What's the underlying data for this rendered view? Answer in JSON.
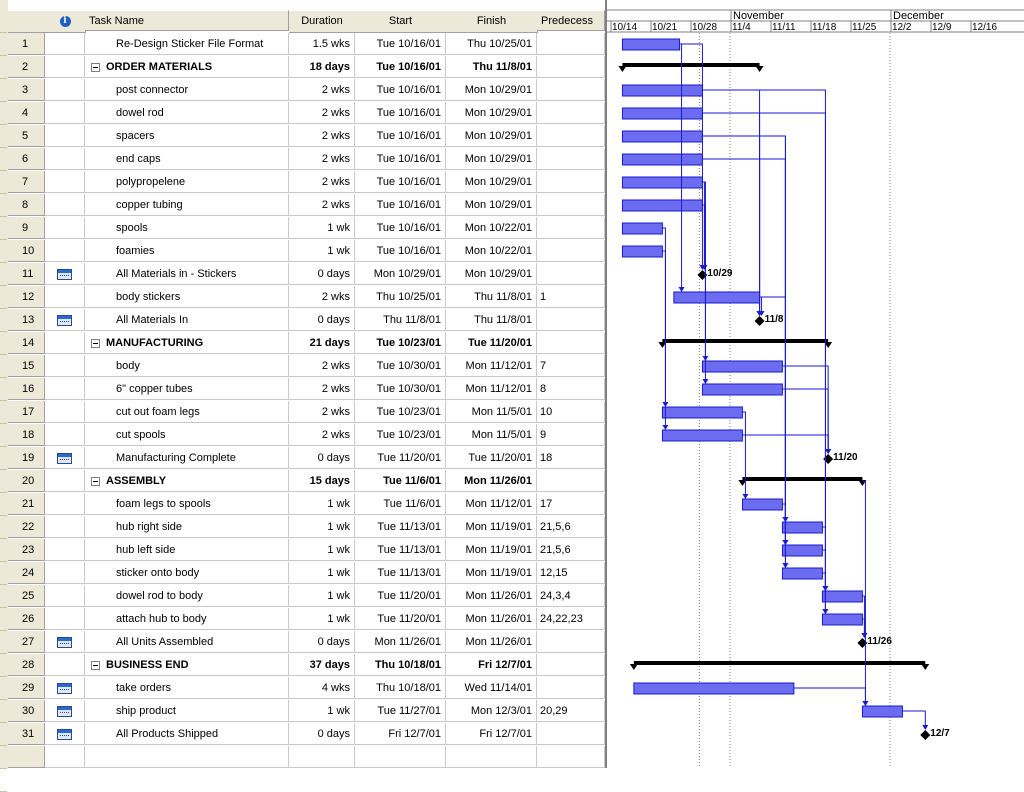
{
  "table": {
    "headers": {
      "indicator": "info-icon",
      "name": "Task Name",
      "duration": "Duration",
      "start": "Start",
      "finish": "Finish",
      "predecessors": "Predecess"
    },
    "rows": [
      {
        "id": "1",
        "ind": "",
        "name": "Re-Design Sticker File Format",
        "dur": "1.5 wks",
        "start": "Tue 10/16/01",
        "finish": "Thu 10/25/01",
        "pred": "",
        "summary": false
      },
      {
        "id": "2",
        "ind": "",
        "name": "ORDER MATERIALS",
        "dur": "18 days",
        "start": "Tue 10/16/01",
        "finish": "Thu 11/8/01",
        "pred": "",
        "summary": true
      },
      {
        "id": "3",
        "ind": "",
        "name": "post connector",
        "dur": "2 wks",
        "start": "Tue 10/16/01",
        "finish": "Mon 10/29/01",
        "pred": "",
        "summary": false
      },
      {
        "id": "4",
        "ind": "",
        "name": "dowel rod",
        "dur": "2 wks",
        "start": "Tue 10/16/01",
        "finish": "Mon 10/29/01",
        "pred": "",
        "summary": false
      },
      {
        "id": "5",
        "ind": "",
        "name": "spacers",
        "dur": "2 wks",
        "start": "Tue 10/16/01",
        "finish": "Mon 10/29/01",
        "pred": "",
        "summary": false
      },
      {
        "id": "6",
        "ind": "",
        "name": "end caps",
        "dur": "2 wks",
        "start": "Tue 10/16/01",
        "finish": "Mon 10/29/01",
        "pred": "",
        "summary": false
      },
      {
        "id": "7",
        "ind": "",
        "name": "polypropelene",
        "dur": "2 wks",
        "start": "Tue 10/16/01",
        "finish": "Mon 10/29/01",
        "pred": "",
        "summary": false
      },
      {
        "id": "8",
        "ind": "",
        "name": "copper tubing",
        "dur": "2 wks",
        "start": "Tue 10/16/01",
        "finish": "Mon 10/29/01",
        "pred": "",
        "summary": false
      },
      {
        "id": "9",
        "ind": "",
        "name": "spools",
        "dur": "1 wk",
        "start": "Tue 10/16/01",
        "finish": "Mon 10/22/01",
        "pred": "",
        "summary": false
      },
      {
        "id": "10",
        "ind": "",
        "name": "foamies",
        "dur": "1 wk",
        "start": "Tue 10/16/01",
        "finish": "Mon 10/22/01",
        "pred": "",
        "summary": false
      },
      {
        "id": "11",
        "ind": "calendar-icon",
        "name": "All Materials in - Stickers",
        "dur": "0 days",
        "start": "Mon 10/29/01",
        "finish": "Mon 10/29/01",
        "pred": "",
        "summary": false
      },
      {
        "id": "12",
        "ind": "",
        "name": "body stickers",
        "dur": "2 wks",
        "start": "Thu 10/25/01",
        "finish": "Thu 11/8/01",
        "pred": "1",
        "summary": false
      },
      {
        "id": "13",
        "ind": "calendar-icon",
        "name": "All Materials In",
        "dur": "0 days",
        "start": "Thu 11/8/01",
        "finish": "Thu 11/8/01",
        "pred": "",
        "summary": false
      },
      {
        "id": "14",
        "ind": "",
        "name": "MANUFACTURING",
        "dur": "21 days",
        "start": "Tue 10/23/01",
        "finish": "Tue 11/20/01",
        "pred": "",
        "summary": true
      },
      {
        "id": "15",
        "ind": "",
        "name": "body",
        "dur": "2 wks",
        "start": "Tue 10/30/01",
        "finish": "Mon 11/12/01",
        "pred": "7",
        "summary": false
      },
      {
        "id": "16",
        "ind": "",
        "name": "6\" copper tubes",
        "dur": "2 wks",
        "start": "Tue 10/30/01",
        "finish": "Mon 11/12/01",
        "pred": "8",
        "summary": false
      },
      {
        "id": "17",
        "ind": "",
        "name": "cut out foam legs",
        "dur": "2 wks",
        "start": "Tue 10/23/01",
        "finish": "Mon 11/5/01",
        "pred": "10",
        "summary": false
      },
      {
        "id": "18",
        "ind": "",
        "name": "cut spools",
        "dur": "2 wks",
        "start": "Tue 10/23/01",
        "finish": "Mon 11/5/01",
        "pred": "9",
        "summary": false
      },
      {
        "id": "19",
        "ind": "calendar-icon",
        "name": "Manufacturing Complete",
        "dur": "0 days",
        "start": "Tue 11/20/01",
        "finish": "Tue 11/20/01",
        "pred": "18",
        "summary": false
      },
      {
        "id": "20",
        "ind": "",
        "name": "ASSEMBLY",
        "dur": "15 days",
        "start": "Tue 11/6/01",
        "finish": "Mon 11/26/01",
        "pred": "",
        "summary": true
      },
      {
        "id": "21",
        "ind": "",
        "name": "foam legs to spools",
        "dur": "1 wk",
        "start": "Tue 11/6/01",
        "finish": "Mon 11/12/01",
        "pred": "17",
        "summary": false
      },
      {
        "id": "22",
        "ind": "",
        "name": "hub right side",
        "dur": "1 wk",
        "start": "Tue 11/13/01",
        "finish": "Mon 11/19/01",
        "pred": "21,5,6",
        "summary": false
      },
      {
        "id": "23",
        "ind": "",
        "name": "hub left side",
        "dur": "1 wk",
        "start": "Tue 11/13/01",
        "finish": "Mon 11/19/01",
        "pred": "21,5,6",
        "summary": false
      },
      {
        "id": "24",
        "ind": "",
        "name": "sticker onto body",
        "dur": "1 wk",
        "start": "Tue 11/13/01",
        "finish": "Mon 11/19/01",
        "pred": "12,15",
        "summary": false
      },
      {
        "id": "25",
        "ind": "",
        "name": "dowel rod to body",
        "dur": "1 wk",
        "start": "Tue 11/20/01",
        "finish": "Mon 11/26/01",
        "pred": "24,3,4",
        "summary": false
      },
      {
        "id": "26",
        "ind": "",
        "name": "attach hub to body",
        "dur": "1 wk",
        "start": "Tue 11/20/01",
        "finish": "Mon 11/26/01",
        "pred": "24,22,23",
        "summary": false
      },
      {
        "id": "27",
        "ind": "calendar-icon",
        "name": "All Units Assembled",
        "dur": "0 days",
        "start": "Mon 11/26/01",
        "finish": "Mon 11/26/01",
        "pred": "",
        "summary": false
      },
      {
        "id": "28",
        "ind": "",
        "name": "BUSINESS END",
        "dur": "37 days",
        "start": "Thu 10/18/01",
        "finish": "Fri 12/7/01",
        "pred": "",
        "summary": true
      },
      {
        "id": "29",
        "ind": "calendar-icon",
        "name": "take orders",
        "dur": "4 wks",
        "start": "Thu 10/18/01",
        "finish": "Wed 11/14/01",
        "pred": "",
        "summary": false
      },
      {
        "id": "30",
        "ind": "calendar-icon",
        "name": "ship product",
        "dur": "1 wk",
        "start": "Tue 11/27/01",
        "finish": "Mon 12/3/01",
        "pred": "20,29",
        "summary": false
      },
      {
        "id": "31",
        "ind": "calendar-icon",
        "name": "All Products Shipped",
        "dur": "0 days",
        "start": "Fri 12/7/01",
        "finish": "Fri 12/7/01",
        "pred": "",
        "summary": false
      }
    ]
  },
  "gantt": {
    "months": [
      {
        "label": "November",
        "from": "11/4"
      },
      {
        "label": "December",
        "from": "12/2"
      }
    ],
    "weeks": [
      "10/14",
      "10/21",
      "10/28",
      "11/4",
      "11/11",
      "11/18",
      "11/25",
      "12/2",
      "12/9",
      "12/16"
    ],
    "milestone_labels": {
      "11": "10/29",
      "13": "11/8",
      "19": "11/20",
      "27": "11/26",
      "31": "12/7"
    },
    "colors": {
      "bar_fill": "#6c6cf0",
      "bar_border": "#1a1ad0",
      "summary": "#000000",
      "link": "#1a1ad0",
      "grid": "#808080"
    }
  }
}
